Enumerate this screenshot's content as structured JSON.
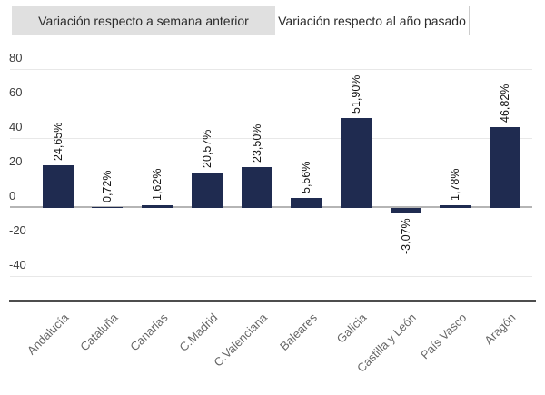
{
  "tabs": [
    {
      "label": "Variación respecto a semana anterior",
      "active": true
    },
    {
      "label": "Variación respecto al año pasado",
      "active": false
    }
  ],
  "chart_data": {
    "type": "bar",
    "title": "",
    "xlabel": "",
    "ylabel": "",
    "categories": [
      "Andalucía",
      "Cataluña",
      "Canarias",
      "C.Madrid",
      "C.Valenciana",
      "Baleares",
      "Galicia",
      "Castilla y León",
      "País Vasco",
      "Aragón"
    ],
    "values": [
      24.65,
      0.72,
      1.62,
      20.57,
      23.5,
      5.56,
      51.9,
      -3.07,
      1.78,
      46.82
    ],
    "value_labels": [
      "24,65%",
      "0,72%",
      "1,62%",
      "20,57%",
      "23,50%",
      "5,56%",
      "51,90%",
      "-3,07%",
      "1,78%",
      "46,82%"
    ],
    "yticks": [
      80,
      60,
      40,
      20,
      0,
      -20,
      -40
    ],
    "ylim": [
      -53,
      90
    ],
    "grid": true,
    "legend": false,
    "value_label_rotation": -90,
    "category_label_rotation": -45,
    "colors": {
      "bar": "#1f2b50",
      "grid": "#e8e8e8",
      "zero_line": "#b5b5b5",
      "axis_line": "#4d4d4d",
      "tick_text": "#3d3d3d",
      "value_text": "#141414",
      "category_text": "#666666",
      "tab_active_bg": "#e0e0e0",
      "tab_inactive_bg": "#ffffff",
      "tab_border": "#cccccc",
      "tab_text": "#2b2b2b"
    }
  }
}
